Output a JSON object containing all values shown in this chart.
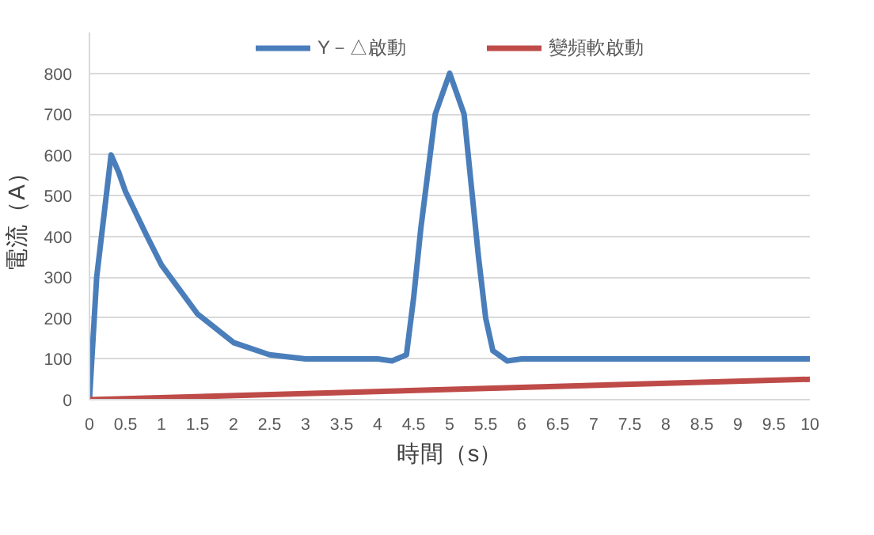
{
  "chart_data": {
    "type": "line",
    "xlabel": "時間（s）",
    "ylabel": "電流（A）",
    "xlim": [
      0,
      10
    ],
    "ylim": [
      0,
      900
    ],
    "xticks": [
      0,
      0.5,
      1,
      1.5,
      2,
      2.5,
      3,
      3.5,
      4,
      4.5,
      5,
      5.5,
      6,
      6.5,
      7,
      7.5,
      8,
      8.5,
      9,
      9.5,
      10
    ],
    "yticks": [
      0,
      100,
      200,
      300,
      400,
      500,
      600,
      700,
      800
    ],
    "grid": "y",
    "legend": "top",
    "line_style": "solid",
    "marker": "none",
    "series": [
      {
        "name": "Y－△啟動",
        "color": "#4a7ebb",
        "x": [
          0,
          0.1,
          0.3,
          0.4,
          0.5,
          0.8,
          1,
          1.5,
          2,
          2.5,
          3,
          3.5,
          4,
          4.2,
          4.4,
          4.5,
          4.6,
          4.8,
          5,
          5.2,
          5.4,
          5.5,
          5.6,
          5.8,
          6,
          7,
          8,
          9,
          10
        ],
        "values": [
          0,
          300,
          600,
          560,
          510,
          400,
          330,
          210,
          140,
          110,
          100,
          100,
          100,
          95,
          110,
          250,
          420,
          700,
          800,
          700,
          350,
          200,
          120,
          95,
          100,
          100,
          100,
          100,
          100
        ]
      },
      {
        "name": "變頻軟啟動",
        "color": "#be4b48",
        "x": [
          0,
          10
        ],
        "values": [
          0,
          50
        ]
      }
    ]
  }
}
